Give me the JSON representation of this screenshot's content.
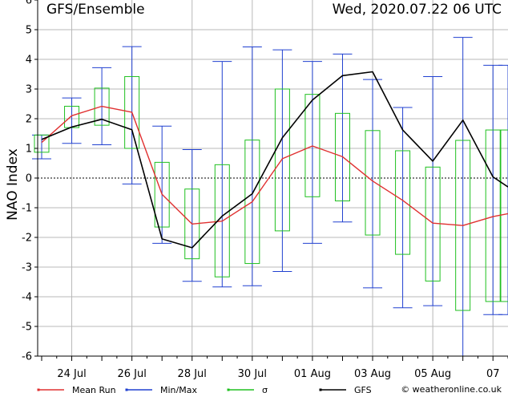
{
  "chart_data": {
    "type": "line",
    "title": "GFS/Ensemble",
    "run_time": "Wed, 2020.07.22   06 UTC",
    "ylabel": "NAO Index",
    "xlabel": "",
    "ylim": [
      -6,
      6
    ],
    "yticks": [
      -6,
      -5,
      -4,
      -3,
      -2,
      -1,
      0,
      1,
      2,
      3,
      4,
      5,
      6
    ],
    "xlim": [
      0,
      31
    ],
    "grid": true,
    "xtick_labels": [
      {
        "x": 2,
        "label": "24 Jul"
      },
      {
        "x": 6,
        "label": "26 Jul"
      },
      {
        "x": 10,
        "label": "28 Jul"
      },
      {
        "x": 14,
        "label": "30 Jul"
      },
      {
        "x": 18,
        "label": "01 Aug"
      },
      {
        "x": 22,
        "label": "03 Aug"
      },
      {
        "x": 26,
        "label": "05 Aug"
      },
      {
        "x": 30,
        "label": "07"
      }
    ],
    "x": [
      0,
      2,
      4,
      6,
      8,
      10,
      12,
      14,
      16,
      18,
      20,
      22,
      24,
      26,
      28,
      30,
      31
    ],
    "series": [
      {
        "name": "Mean Run",
        "color": "#e03030",
        "values": [
          1.2,
          2.1,
          2.42,
          2.22,
          -0.55,
          -1.55,
          -1.45,
          -0.8,
          0.65,
          1.08,
          0.72,
          -0.1,
          -0.75,
          -1.52,
          -1.6,
          -1.3,
          -1.2
        ]
      },
      {
        "name": "GFS",
        "color": "#000000",
        "values": [
          1.3,
          1.72,
          1.98,
          1.63,
          -2.05,
          -2.35,
          -1.28,
          -0.53,
          1.36,
          2.63,
          3.45,
          3.58,
          1.62,
          0.57,
          1.95,
          0.04,
          -0.3
        ]
      }
    ],
    "minmax": {
      "name": "Min/Max",
      "color": "#2040d0",
      "min": [
        0.65,
        1.17,
        1.12,
        -0.2,
        -2.2,
        -3.48,
        -3.67,
        -3.63,
        -3.15,
        -2.2,
        -1.48,
        -3.7,
        -4.37,
        -4.3,
        -6.0,
        -4.6,
        -4.6
      ],
      "max": [
        1.45,
        2.7,
        3.72,
        4.43,
        1.75,
        0.96,
        3.93,
        4.42,
        4.32,
        3.93,
        4.18,
        3.32,
        2.38,
        3.42,
        4.74,
        3.8,
        3.8
      ]
    },
    "sigma": {
      "name": "σ",
      "color": "#20c020",
      "low": [
        0.87,
        1.7,
        1.78,
        1.0,
        -1.65,
        -2.72,
        -3.33,
        -2.88,
        -1.78,
        -0.63,
        -0.77,
        -1.92,
        -2.57,
        -3.47,
        -4.46,
        -4.16,
        -4.16
      ],
      "high": [
        1.45,
        2.42,
        3.03,
        3.42,
        0.53,
        -0.37,
        0.45,
        1.28,
        3.0,
        2.82,
        2.18,
        1.6,
        0.92,
        0.37,
        1.27,
        1.62,
        1.62
      ]
    },
    "legend": [
      {
        "label": "Mean Run",
        "color": "#e03030"
      },
      {
        "label": "Min/Max",
        "color": "#2040d0"
      },
      {
        "label": "σ",
        "color": "#20c020"
      },
      {
        "label": "GFS",
        "color": "#000000"
      }
    ],
    "legend_position": "bottom",
    "watermark": "© weatheronline.co.uk"
  }
}
